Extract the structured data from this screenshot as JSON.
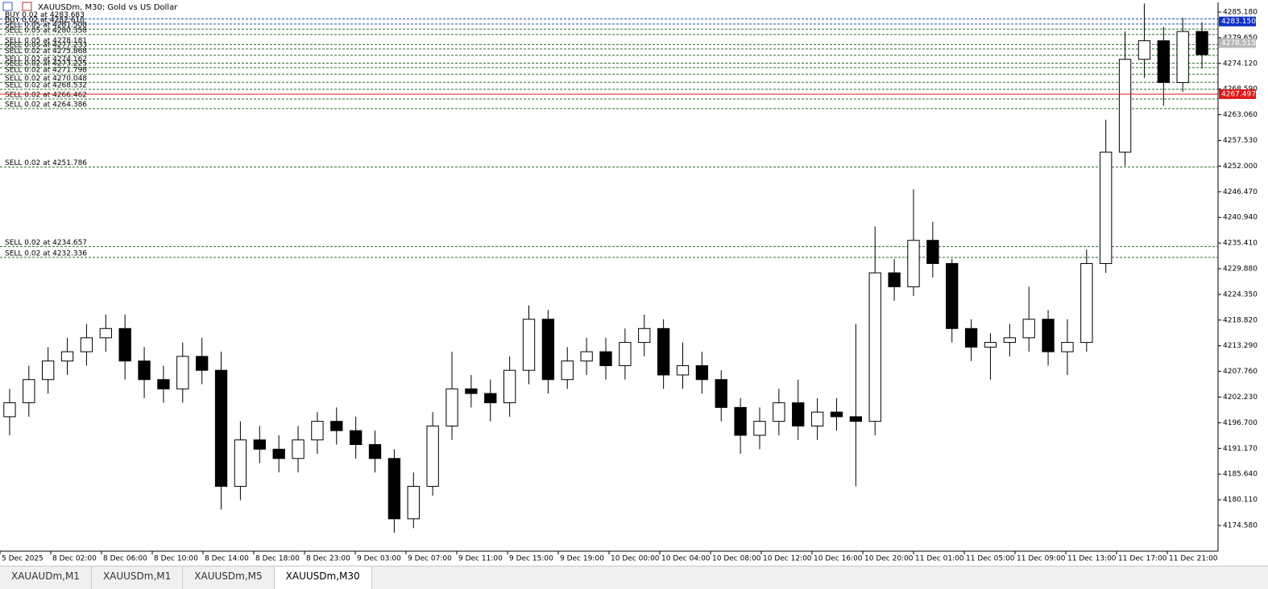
{
  "window_title": "XAUUSDm, M30:  Gold vs US Dollar",
  "tabs": [
    "XAUAUDm,M1",
    "XAUUSDm,M1",
    "XAUUSDm,M5",
    "XAUUSDm,M30"
  ],
  "active_tab": 3,
  "chart_data": {
    "type": "candlestick",
    "up_color": "#ffffff",
    "down_color": "#000000",
    "open": [
      4198,
      4201,
      4206,
      4210,
      4212,
      4215,
      4217,
      4210,
      4206,
      4204,
      4211,
      4208,
      4183,
      4193,
      4191,
      4189,
      4193,
      4197,
      4195,
      4192,
      4189,
      4176,
      4183,
      4196,
      4204,
      4203,
      4201,
      4208,
      4219,
      4206,
      4210,
      4212,
      4209,
      4214,
      4217,
      4207,
      4209,
      4206,
      4200,
      4194,
      4197,
      4201,
      4196,
      4199,
      4198,
      4197,
      4229,
      4226,
      4236,
      4231,
      4217,
      4213,
      4214,
      4215,
      4219,
      4212,
      4214,
      4231,
      4255,
      4275,
      4279,
      4270,
      4281
    ],
    "high": [
      4204,
      4209,
      4213,
      4215,
      4218,
      4220,
      4220,
      4213,
      4209,
      4214,
      4215,
      4212,
      4197,
      4196,
      4194,
      4196,
      4199,
      4200,
      4198,
      4195,
      4191,
      4186,
      4199,
      4212,
      4207,
      4206,
      4211,
      4222,
      4221,
      4213,
      4215,
      4215,
      4217,
      4220,
      4219,
      4214,
      4212,
      4208,
      4202,
      4200,
      4204,
      4206,
      4202,
      4202,
      4218,
      4239,
      4232,
      4247,
      4240,
      4232,
      4219,
      4216,
      4218,
      4226,
      4221,
      4219,
      4234,
      4262,
      4281,
      4287,
      4282,
      4284,
      4283
    ],
    "low": [
      4194,
      4198,
      4203,
      4207,
      4209,
      4212,
      4206,
      4202,
      4201,
      4201,
      4205,
      4178,
      4180,
      4188,
      4186,
      4186,
      4190,
      4192,
      4189,
      4186,
      4173,
      4174,
      4181,
      4193,
      4200,
      4197,
      4198,
      4205,
      4203,
      4204,
      4207,
      4206,
      4206,
      4211,
      4204,
      4204,
      4203,
      4197,
      4190,
      4191,
      4194,
      4193,
      4193,
      4195,
      4183,
      4194,
      4223,
      4224,
      4228,
      4214,
      4210,
      4206,
      4211,
      4212,
      4209,
      4207,
      4212,
      4229,
      4252,
      4271,
      4265,
      4268,
      4273
    ],
    "close": [
      4201,
      4206,
      4210,
      4212,
      4215,
      4217,
      4210,
      4206,
      4204,
      4211,
      4208,
      4183,
      4193,
      4191,
      4189,
      4193,
      4197,
      4195,
      4192,
      4189,
      4176,
      4183,
      4196,
      4204,
      4203,
      4201,
      4208,
      4219,
      4206,
      4210,
      4212,
      4209,
      4214,
      4217,
      4207,
      4209,
      4206,
      4200,
      4194,
      4197,
      4201,
      4196,
      4199,
      4198,
      4197,
      4229,
      4226,
      4236,
      4231,
      4217,
      4213,
      4214,
      4215,
      4219,
      4212,
      4214,
      4231,
      4255,
      4275,
      4279,
      4270,
      4281,
      4276
    ],
    "x_labels": [
      "5 Dec 2025",
      "8 Dec 02:00",
      "8 Dec 06:00",
      "8 Dec 10:00",
      "8 Dec 14:00",
      "8 Dec 18:00",
      "8 Dec 23:00",
      "9 Dec 03:00",
      "9 Dec 07:00",
      "9 Dec 11:00",
      "9 Dec 15:00",
      "9 Dec 19:00",
      "10 Dec 00:00",
      "10 Dec 04:00",
      "10 Dec 08:00",
      "10 Dec 12:00",
      "10 Dec 16:00",
      "10 Dec 20:00",
      "11 Dec 01:00",
      "11 Dec 05:00",
      "11 Dec 09:00",
      "11 Dec 13:00",
      "11 Dec 17:00",
      "11 Dec 21:00"
    ],
    "ylim": [
      4169.03,
      4287.26
    ],
    "yticks": [
      {
        "value": 4285.18,
        "label": "4285.180"
      },
      {
        "value": 4279.65,
        "label": "4279.650"
      },
      {
        "value": 4274.12,
        "label": "4274.120"
      },
      {
        "value": 4268.59,
        "label": "4268.590"
      },
      {
        "value": 4263.06,
        "label": "4263.060"
      },
      {
        "value": 4257.53,
        "label": "4257.530"
      },
      {
        "value": 4252,
        "label": "4252.000"
      },
      {
        "value": 4246.47,
        "label": "4246.470"
      },
      {
        "value": 4240.94,
        "label": "4240.940"
      },
      {
        "value": 4235.41,
        "label": "4235.410"
      },
      {
        "value": 4229.88,
        "label": "4229.880"
      },
      {
        "value": 4224.35,
        "label": "4224.350"
      },
      {
        "value": 4218.82,
        "label": "4218.820"
      },
      {
        "value": 4213.29,
        "label": "4213.290"
      },
      {
        "value": 4207.76,
        "label": "4207.760"
      },
      {
        "value": 4202.23,
        "label": "4202.230"
      },
      {
        "value": 4196.7,
        "label": "4196.700"
      },
      {
        "value": 4191.17,
        "label": "4191.170"
      },
      {
        "value": 4185.64,
        "label": "4185.640"
      },
      {
        "value": 4180.11,
        "label": "4180.110"
      },
      {
        "value": 4174.58,
        "label": "4174.580"
      }
    ],
    "orders": [
      {
        "label": "BUY 0.02 at 4283.683",
        "price": 4283.683,
        "color": "#1f4fa8"
      },
      {
        "label": "BUY 0.02 at 4282.610",
        "price": 4282.61,
        "color": "#1f4fa8"
      },
      {
        "label": "SELL 0.05 at 4281.508",
        "price": 4281.508,
        "color": "#2e6b2e"
      },
      {
        "label": "SELL 0.05 at 4280.358",
        "price": 4280.358,
        "color": "#2e6b2e"
      },
      {
        "label": "SELL 0.05 at 4278.181",
        "price": 4278.181,
        "color": "#2e6b2e"
      },
      {
        "label": "SELL 0.05 at 4277.233",
        "price": 4277.233,
        "color": "#2e6b2e"
      },
      {
        "label": "SELL 0.02 at 4275.868",
        "price": 4275.868,
        "color": "#2e6b2e"
      },
      {
        "label": "SELL 0.02 at 4274.162",
        "price": 4274.162,
        "color": "#2e6b2e"
      },
      {
        "label": "SELL 0.02 at 4273.225",
        "price": 4273.225,
        "color": "#2e6b2e"
      },
      {
        "label": "SELL 0.02 at 4271.798",
        "price": 4271.798,
        "color": "#2e6b2e"
      },
      {
        "label": "SELL 0.02 at 4270.048",
        "price": 4270.048,
        "color": "#2e6b2e"
      },
      {
        "label": "SELL 0.02 at 4268.532",
        "price": 4268.532,
        "color": "#2e6b2e"
      },
      {
        "label": "SELL 0.02 at 4266.462",
        "price": 4266.462,
        "color": "#2e6b2e"
      },
      {
        "label": "SELL 0.02 at 4264.386",
        "price": 4264.386,
        "color": "#2e6b2e"
      },
      {
        "label": "SELL 0.02 at 4251.786",
        "price": 4251.786,
        "color": "#2e6b2e"
      },
      {
        "label": "SELL 0.02 at 4234.657",
        "price": 4234.657,
        "color": "#2e6b2e"
      },
      {
        "label": "SELL 0.02 at 4232.336",
        "price": 4232.336,
        "color": "#2e6b2e"
      }
    ],
    "price_tags": [
      {
        "value": 4283.15,
        "label": "4283.150",
        "color": "#1030c8"
      },
      {
        "value": 4278.515,
        "label": "4278.515",
        "color": "#b8b8b8"
      },
      {
        "value": 4267.497,
        "label": "4267.497",
        "color": "#e01818"
      }
    ]
  }
}
